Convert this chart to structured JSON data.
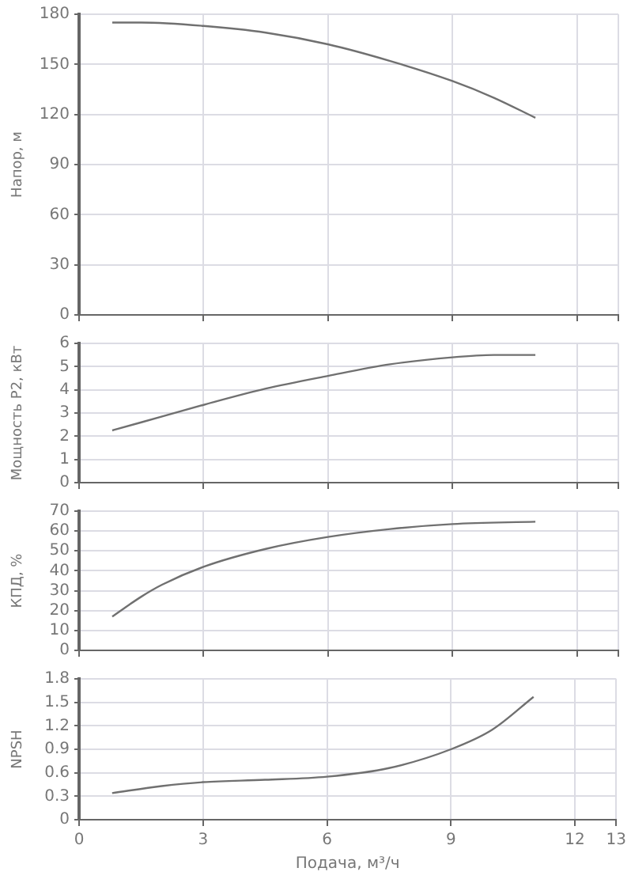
{
  "chart_data": [
    {
      "type": "line",
      "ylabel": "Напор, м",
      "x": [
        0.8,
        1.5,
        3,
        4.5,
        6,
        7.5,
        9,
        10,
        11
      ],
      "xlim": [
        0,
        13
      ],
      "xticks": [
        0,
        3,
        6,
        9,
        12,
        13
      ],
      "ylim": [
        0,
        180
      ],
      "yticks": [
        0,
        30,
        60,
        90,
        120,
        150,
        180
      ],
      "grid": true,
      "tick_labels": "y",
      "marker": "none",
      "series": [
        {
          "color": "#707070",
          "values": [
            175,
            175,
            173,
            169,
            162,
            152,
            140,
            130,
            118
          ]
        }
      ]
    },
    {
      "type": "line",
      "ylabel": "Мощность P2, кВт",
      "x": [
        0.8,
        1.5,
        3,
        4.5,
        6,
        7.5,
        9,
        10,
        11
      ],
      "xlim": [
        0,
        13
      ],
      "xticks": [
        0,
        3,
        6,
        9,
        12,
        13
      ],
      "ylim": [
        0,
        6
      ],
      "yticks": [
        0,
        1,
        2,
        3,
        4,
        5,
        6
      ],
      "grid": true,
      "tick_labels": "y",
      "marker": "none",
      "series": [
        {
          "color": "#707070",
          "values": [
            2.25,
            2.6,
            3.35,
            4.05,
            4.6,
            5.1,
            5.4,
            5.5,
            5.5
          ]
        }
      ]
    },
    {
      "type": "line",
      "ylabel": "КПД, %",
      "x": [
        0.8,
        1.5,
        2,
        3,
        4.5,
        6,
        7.5,
        9,
        11
      ],
      "xlim": [
        0,
        13
      ],
      "xticks": [
        0,
        3,
        6,
        9,
        12,
        13
      ],
      "ylim": [
        0,
        70
      ],
      "yticks": [
        0,
        10,
        20,
        30,
        40,
        50,
        60,
        70
      ],
      "grid": true,
      "tick_labels": "y",
      "marker": "none",
      "series": [
        {
          "color": "#707070",
          "values": [
            17,
            27,
            33,
            42,
            51,
            57,
            61,
            63.5,
            64.7
          ]
        }
      ]
    },
    {
      "type": "line",
      "ylabel": "NPSH",
      "xlabel": "Подача, м³/ч",
      "x": [
        0.8,
        2,
        3,
        4.5,
        6,
        7.5,
        9,
        10,
        11
      ],
      "xlim": [
        0,
        13
      ],
      "xticks": [
        0,
        3,
        6,
        9,
        12,
        13
      ],
      "ylim": [
        0,
        1.8
      ],
      "yticks": [
        0,
        0.3,
        0.6,
        0.9,
        1.2,
        1.5,
        1.8
      ],
      "grid": true,
      "marker": "none",
      "series": [
        {
          "color": "#707070",
          "values": [
            0.34,
            0.43,
            0.48,
            0.51,
            0.55,
            0.66,
            0.9,
            1.15,
            1.57
          ]
        }
      ]
    }
  ]
}
